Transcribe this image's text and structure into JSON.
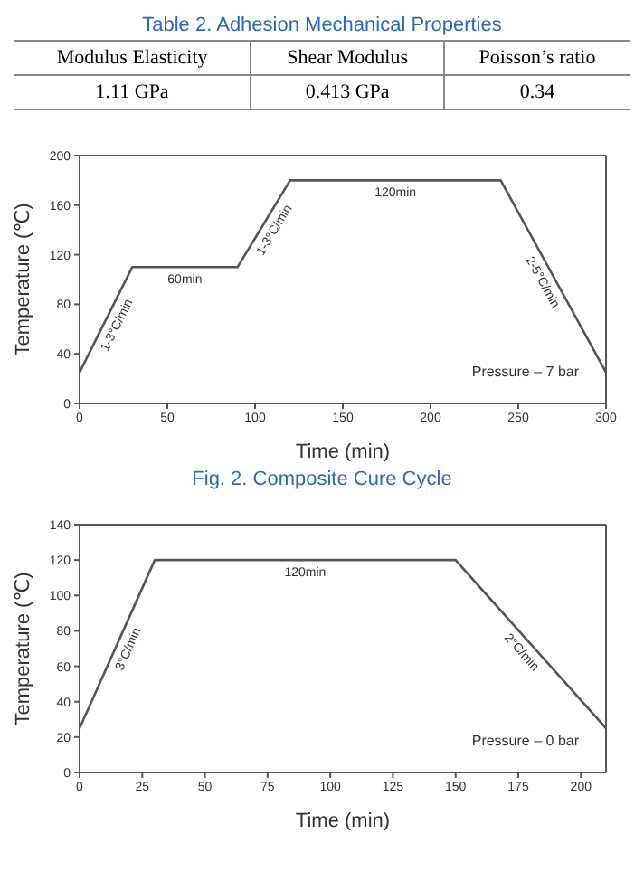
{
  "chart_data": [
    {
      "type": "other",
      "title": "Table 2. Adhesion Mechanical Properties",
      "categories": [
        "Modulus Elasticity",
        "Shear Modulus",
        "Poisson’s ratio"
      ],
      "annotations": [
        "1.11 GPa",
        "0.413 GPa",
        "0.34"
      ]
    },
    {
      "type": "line",
      "title": "Fig. 2. Composite Cure Cycle",
      "xlabel": "Time (min)",
      "ylabel": "Temperature (℃)",
      "x": [
        0,
        30,
        90,
        120,
        240,
        300
      ],
      "series": [
        {
          "color": "#555555",
          "values": [
            25,
            110,
            110,
            180,
            180,
            25
          ]
        }
      ],
      "xlim": [
        0,
        300
      ],
      "xticks": [
        0,
        50,
        100,
        150,
        200,
        250,
        300
      ],
      "ylim": [
        0,
        200
      ],
      "yticks": [
        0,
        40,
        80,
        120,
        160,
        200
      ],
      "marker": "none",
      "annotations": [
        {
          "text": "1-3°C/min",
          "x": 15,
          "y": 67.5
        },
        {
          "text": "60min",
          "x": 60,
          "y": 110
        },
        {
          "text": "1-3°C/min",
          "x": 105,
          "y": 145
        },
        {
          "text": "120min",
          "x": 180,
          "y": 180
        },
        {
          "text": "2-5°C/min",
          "x": 270,
          "y": 102.5
        },
        "Pressure – 7 bar"
      ]
    },
    {
      "type": "line",
      "xlabel": "Time (min)",
      "ylabel": "Temperature (℃)",
      "x": [
        0,
        30,
        150,
        210
      ],
      "series": [
        {
          "color": "#555555",
          "values": [
            25,
            120,
            120,
            25
          ]
        }
      ],
      "xlim": [
        0,
        210
      ],
      "xticks": [
        0,
        25,
        50,
        75,
        100,
        125,
        150,
        175,
        200
      ],
      "ylim": [
        0,
        140
      ],
      "yticks": [
        0,
        20,
        40,
        60,
        80,
        100,
        120,
        140
      ],
      "marker": "none",
      "annotations": [
        {
          "text": "3°C/min",
          "x": 15,
          "y": 72.5
        },
        {
          "text": "120min",
          "x": 90,
          "y": 120
        },
        {
          "text": "2°C/min",
          "x": 180,
          "y": 72.5
        },
        "Pressure – 0 bar"
      ]
    }
  ]
}
